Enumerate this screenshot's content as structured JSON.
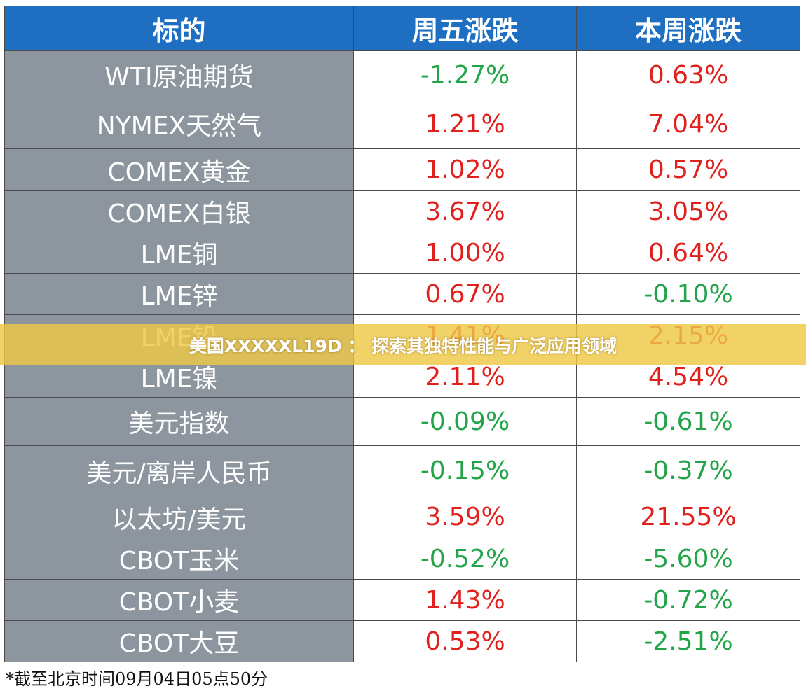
{
  "table": {
    "header": [
      "标的",
      "周五涨跌",
      "本周涨跌"
    ],
    "rows": [
      [
        "WTI原油期货",
        "-1.27%",
        "0.63%"
      ],
      [
        "NYMEX天然气",
        "1.21%",
        "7.04%"
      ],
      [
        "COMEX黄金",
        "1.02%",
        "0.57%"
      ],
      [
        "COMEX白银",
        "3.67%",
        "3.05%"
      ],
      [
        "LME铜",
        "1.00%",
        "0.64%"
      ],
      [
        "LME锌",
        "0.67%",
        "-0.10%"
      ],
      [
        "LME铅",
        "1.41%",
        "2.15%"
      ],
      [
        "LME镍",
        "2.11%",
        "4.54%"
      ],
      [
        "美元指数",
        "-0.09%",
        "-0.61%"
      ],
      [
        "美元/离岸人民币",
        "-0.15%",
        "-0.37%"
      ],
      [
        "以太坊/美元",
        "3.59%",
        "21.55%"
      ],
      [
        "CBOT玉米",
        "-0.52%",
        "-5.60%"
      ],
      [
        "CBOT小麦",
        "1.43%",
        "-0.72%"
      ],
      [
        "CBOT大豆",
        "0.53%",
        "-2.51%"
      ]
    ]
  },
  "banner": "美国XXXXXL19D ： 探索其独特性能与广泛应用领域",
  "footnote": "*截至北京时间09月04日05点50分"
}
